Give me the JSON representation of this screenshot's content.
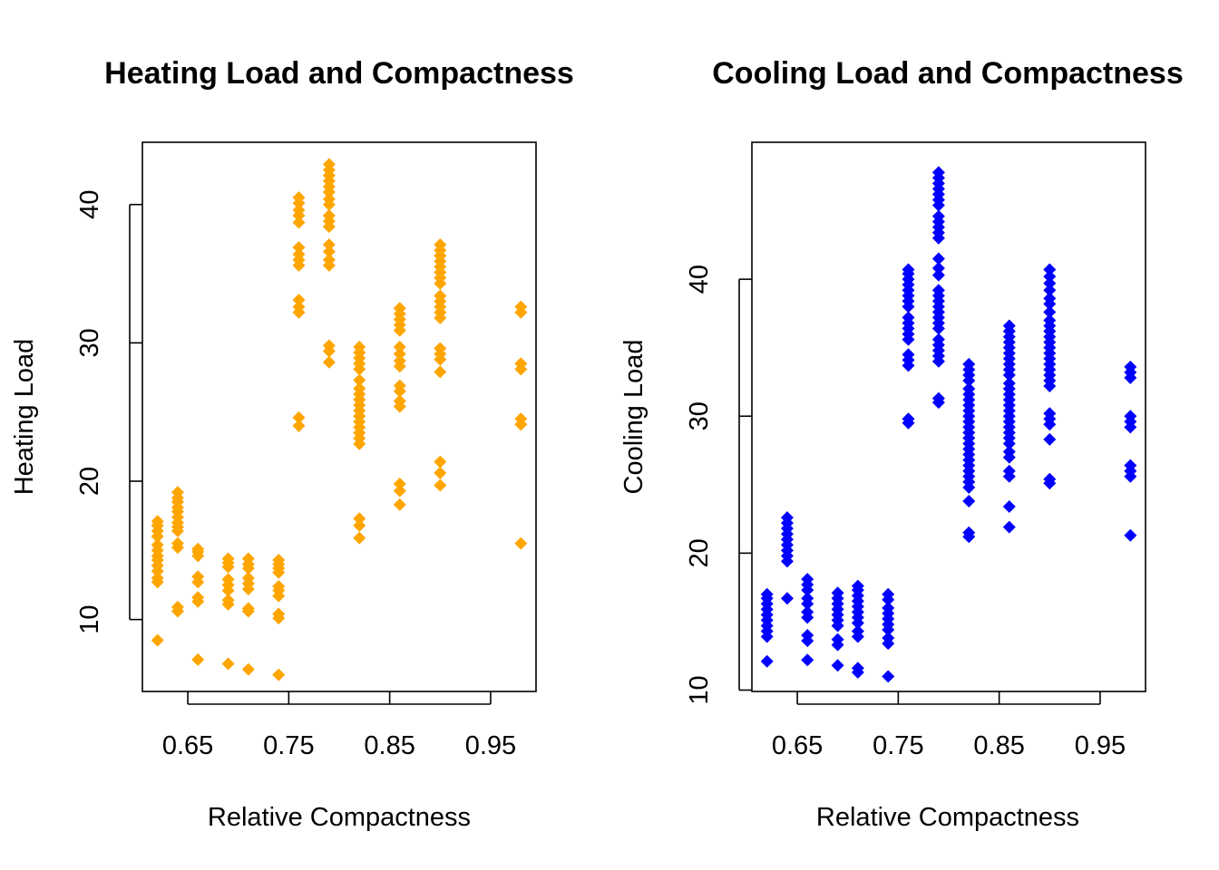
{
  "chart_data": [
    {
      "type": "scatter",
      "title": "Heating Load and Compactness",
      "xlabel": "Relative Compactness",
      "ylabel": "Heating Load",
      "color": "#FFA500",
      "marker": "diamond",
      "xlim": [
        0.605,
        0.995
      ],
      "ylim": [
        4.8,
        44.5
      ],
      "xticks": [
        0.65,
        0.75,
        0.85,
        0.95
      ],
      "yticks": [
        10,
        20,
        30,
        40
      ],
      "xtick_labels": [
        "0.65",
        "0.75",
        "0.85",
        "0.95"
      ],
      "ytick_labels": [
        "10",
        "20",
        "30",
        "40"
      ],
      "columns": [
        {
          "x": 0.62,
          "y": [
            8.5,
            12.7,
            13.0,
            13.5,
            13.9,
            14.3,
            14.6,
            15.0,
            15.4,
            16.0,
            16.4,
            16.8,
            17.1
          ]
        },
        {
          "x": 0.64,
          "y": [
            10.6,
            10.9,
            15.2,
            15.5,
            16.4,
            16.7,
            17.0,
            17.4,
            17.8,
            18.1,
            18.5,
            18.8,
            19.2
          ]
        },
        {
          "x": 0.66,
          "y": [
            7.1,
            11.3,
            11.6,
            12.7,
            13.1,
            14.6,
            14.9,
            15.1
          ]
        },
        {
          "x": 0.69,
          "y": [
            6.8,
            11.1,
            11.4,
            12.1,
            12.5,
            12.9,
            13.8,
            14.1,
            14.4
          ]
        },
        {
          "x": 0.71,
          "y": [
            6.4,
            10.6,
            10.8,
            12.2,
            12.6,
            13.0,
            13.7,
            14.0,
            14.4
          ]
        },
        {
          "x": 0.74,
          "y": [
            6.0,
            10.1,
            10.4,
            11.7,
            12.1,
            12.4,
            13.4,
            13.7,
            14.0,
            14.3
          ]
        },
        {
          "x": 0.76,
          "y": [
            24.0,
            24.6,
            32.2,
            32.6,
            33.1,
            35.6,
            36.0,
            36.4,
            36.9,
            38.7,
            39.2,
            39.6,
            40.1,
            40.5
          ]
        },
        {
          "x": 0.79,
          "y": [
            28.6,
            29.4,
            29.8,
            35.6,
            36.0,
            36.6,
            37.1,
            38.4,
            38.8,
            39.2,
            40.0,
            40.4,
            40.9,
            41.3,
            41.7,
            42.1,
            42.5,
            42.9
          ]
        },
        {
          "x": 0.82,
          "y": [
            15.9,
            16.8,
            17.3,
            22.7,
            23.1,
            23.5,
            23.9,
            24.3,
            24.7,
            25.1,
            25.5,
            25.9,
            26.3,
            26.7,
            27.3,
            28.1,
            28.5,
            28.9,
            29.3,
            29.7
          ]
        },
        {
          "x": 0.86,
          "y": [
            18.3,
            19.3,
            19.8,
            25.4,
            25.8,
            26.5,
            26.9,
            28.3,
            28.7,
            29.2,
            29.7,
            30.9,
            31.3,
            31.7,
            32.1,
            32.5
          ]
        },
        {
          "x": 0.9,
          "y": [
            19.7,
            20.6,
            21.4,
            27.9,
            28.8,
            29.2,
            29.6,
            31.8,
            32.2,
            32.6,
            33.0,
            33.4,
            34.3,
            34.7,
            35.1,
            35.5,
            35.9,
            36.3,
            36.7,
            37.1
          ]
        },
        {
          "x": 0.98,
          "y": [
            15.5,
            24.1,
            24.5,
            28.1,
            28.5,
            32.2,
            32.6
          ]
        }
      ]
    },
    {
      "type": "scatter",
      "title": "Cooling Load and Compactness",
      "xlabel": "Relative Compactness",
      "ylabel": "Cooling Load",
      "color": "#0000FF",
      "marker": "diamond",
      "xlim": [
        0.605,
        0.995
      ],
      "ylim": [
        9.9,
        50.0
      ],
      "xticks": [
        0.65,
        0.75,
        0.85,
        0.95
      ],
      "yticks": [
        10,
        20,
        30,
        40
      ],
      "xtick_labels": [
        "0.65",
        "0.75",
        "0.85",
        "0.95"
      ],
      "ytick_labels": [
        "10",
        "20",
        "30",
        "40"
      ],
      "columns": [
        {
          "x": 0.62,
          "y": [
            12.1,
            13.9,
            14.3,
            14.7,
            15.1,
            15.5,
            15.9,
            16.3,
            16.7,
            17.0
          ]
        },
        {
          "x": 0.64,
          "y": [
            16.7,
            19.4,
            19.8,
            20.2,
            20.6,
            21.0,
            21.4,
            21.8,
            22.2,
            22.6
          ]
        },
        {
          "x": 0.66,
          "y": [
            12.2,
            13.6,
            14.0,
            15.3,
            15.7,
            16.3,
            16.7,
            17.3,
            17.7,
            18.1
          ]
        },
        {
          "x": 0.69,
          "y": [
            11.8,
            13.3,
            13.7,
            14.7,
            15.1,
            15.5,
            15.9,
            16.3,
            16.7,
            17.1
          ]
        },
        {
          "x": 0.71,
          "y": [
            11.3,
            11.6,
            13.9,
            14.3,
            14.9,
            15.3,
            15.7,
            16.1,
            16.5,
            16.9,
            17.3,
            17.6
          ]
        },
        {
          "x": 0.74,
          "y": [
            11.0,
            13.4,
            13.8,
            14.4,
            14.8,
            15.2,
            15.6,
            16.0,
            16.6,
            17.0
          ]
        },
        {
          "x": 0.76,
          "y": [
            29.5,
            29.8,
            33.7,
            34.1,
            34.5,
            35.6,
            36.0,
            36.4,
            36.8,
            37.2,
            38.0,
            38.4,
            38.8,
            39.2,
            39.6,
            40.0,
            40.4,
            40.7
          ]
        },
        {
          "x": 0.79,
          "y": [
            31.0,
            31.3,
            34.0,
            34.4,
            34.8,
            35.2,
            35.6,
            36.4,
            36.8,
            37.2,
            37.6,
            38.0,
            38.4,
            38.8,
            39.2,
            40.3,
            40.8,
            41.5,
            43.0,
            43.4,
            43.8,
            44.2,
            44.6,
            45.4,
            45.8,
            46.2,
            46.6,
            47.0,
            47.4,
            47.8
          ]
        },
        {
          "x": 0.82,
          "y": [
            21.2,
            21.5,
            23.8,
            24.8,
            25.2,
            25.6,
            26.0,
            26.4,
            26.8,
            27.2,
            27.6,
            28.0,
            28.4,
            28.8,
            29.2,
            29.6,
            30.0,
            30.4,
            30.8,
            31.2,
            31.6,
            32.0,
            32.6,
            33.0,
            33.4,
            33.8
          ]
        },
        {
          "x": 0.86,
          "y": [
            21.9,
            23.4,
            25.6,
            26.0,
            27.0,
            27.4,
            28.0,
            28.4,
            28.8,
            29.2,
            29.6,
            30.0,
            30.4,
            30.8,
            31.2,
            31.6,
            32.0,
            32.4,
            33.0,
            33.4,
            33.8,
            34.2,
            34.6,
            35.0,
            35.4,
            35.8,
            36.2,
            36.6
          ]
        },
        {
          "x": 0.9,
          "y": [
            25.1,
            25.4,
            28.3,
            29.4,
            29.8,
            30.2,
            32.2,
            32.6,
            33.0,
            33.4,
            33.8,
            34.2,
            34.6,
            35.0,
            35.4,
            35.8,
            36.2,
            36.6,
            37.0,
            37.6,
            38.2,
            38.6,
            39.2,
            39.7,
            40.2,
            40.7
          ]
        },
        {
          "x": 0.98,
          "y": [
            21.3,
            25.6,
            26.0,
            26.4,
            29.2,
            29.6,
            30.0,
            32.8,
            33.2,
            33.6
          ]
        }
      ]
    }
  ]
}
